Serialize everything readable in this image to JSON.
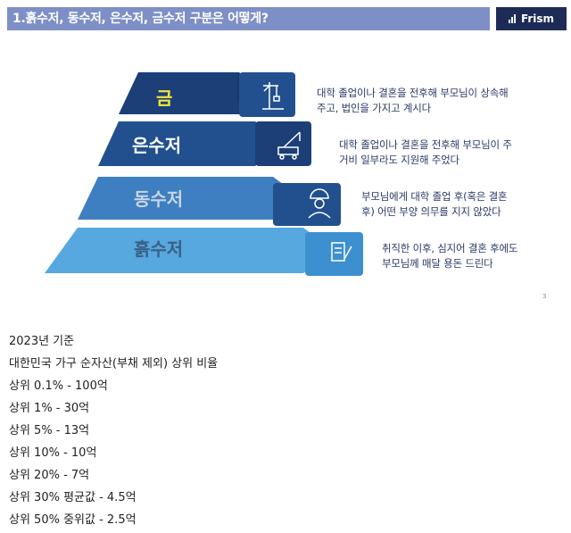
{
  "header": {
    "title": "1.흙수저, 동수저, 은수저, 금수저 구분은 어떻게?",
    "logo": "Frism",
    "colors": {
      "bar": "#7d8fc6",
      "logo_bg": "#1e2b57"
    }
  },
  "pyramid": {
    "tiers": [
      {
        "label": "금",
        "icon": "crane-icon",
        "description": "대학 졸업이나 결혼을 전후해 부모님이 상속해\n주고, 법인을 가지고 계시다",
        "color": "#1c3f78",
        "label_color": "#f2e63c"
      },
      {
        "label": "은수저",
        "icon": "crane-truck-icon",
        "description": "대학 졸업이나 결혼을 전후해 부모님이 주\n거비 일부라도 지원해 주었다",
        "color": "#22508f",
        "label_color": "#ffffff"
      },
      {
        "label": "동수저",
        "icon": "worker-icon",
        "description": "부모님에게 대학 졸업 후(혹은 결혼\n후) 어떤 부양 의무를 지지 않았다",
        "color": "#3d7fc0",
        "label_color": "#c7d4e4"
      },
      {
        "label": "흙수저",
        "icon": "document-edit-icon",
        "description": "취직한 이후, 심지어 결혼 후에도\n부모님께 매달 용돈 드린다",
        "color": "#56a8de",
        "label_color": "#3b5f86"
      }
    ],
    "page_number": "3"
  },
  "stats": {
    "lines": [
      "2023년 기준",
      "대한민국 가구 순자산(부채 제외) 상위 비율",
      "상위 0.1% - 100억",
      "상위 1% - 30억",
      "상위 5% - 13억",
      "상위 10% - 10억",
      "상위 20% - 7억",
      "상위 30% 평균값 - 4.5억",
      "상위 50% 중위값 - 2.5억"
    ]
  }
}
